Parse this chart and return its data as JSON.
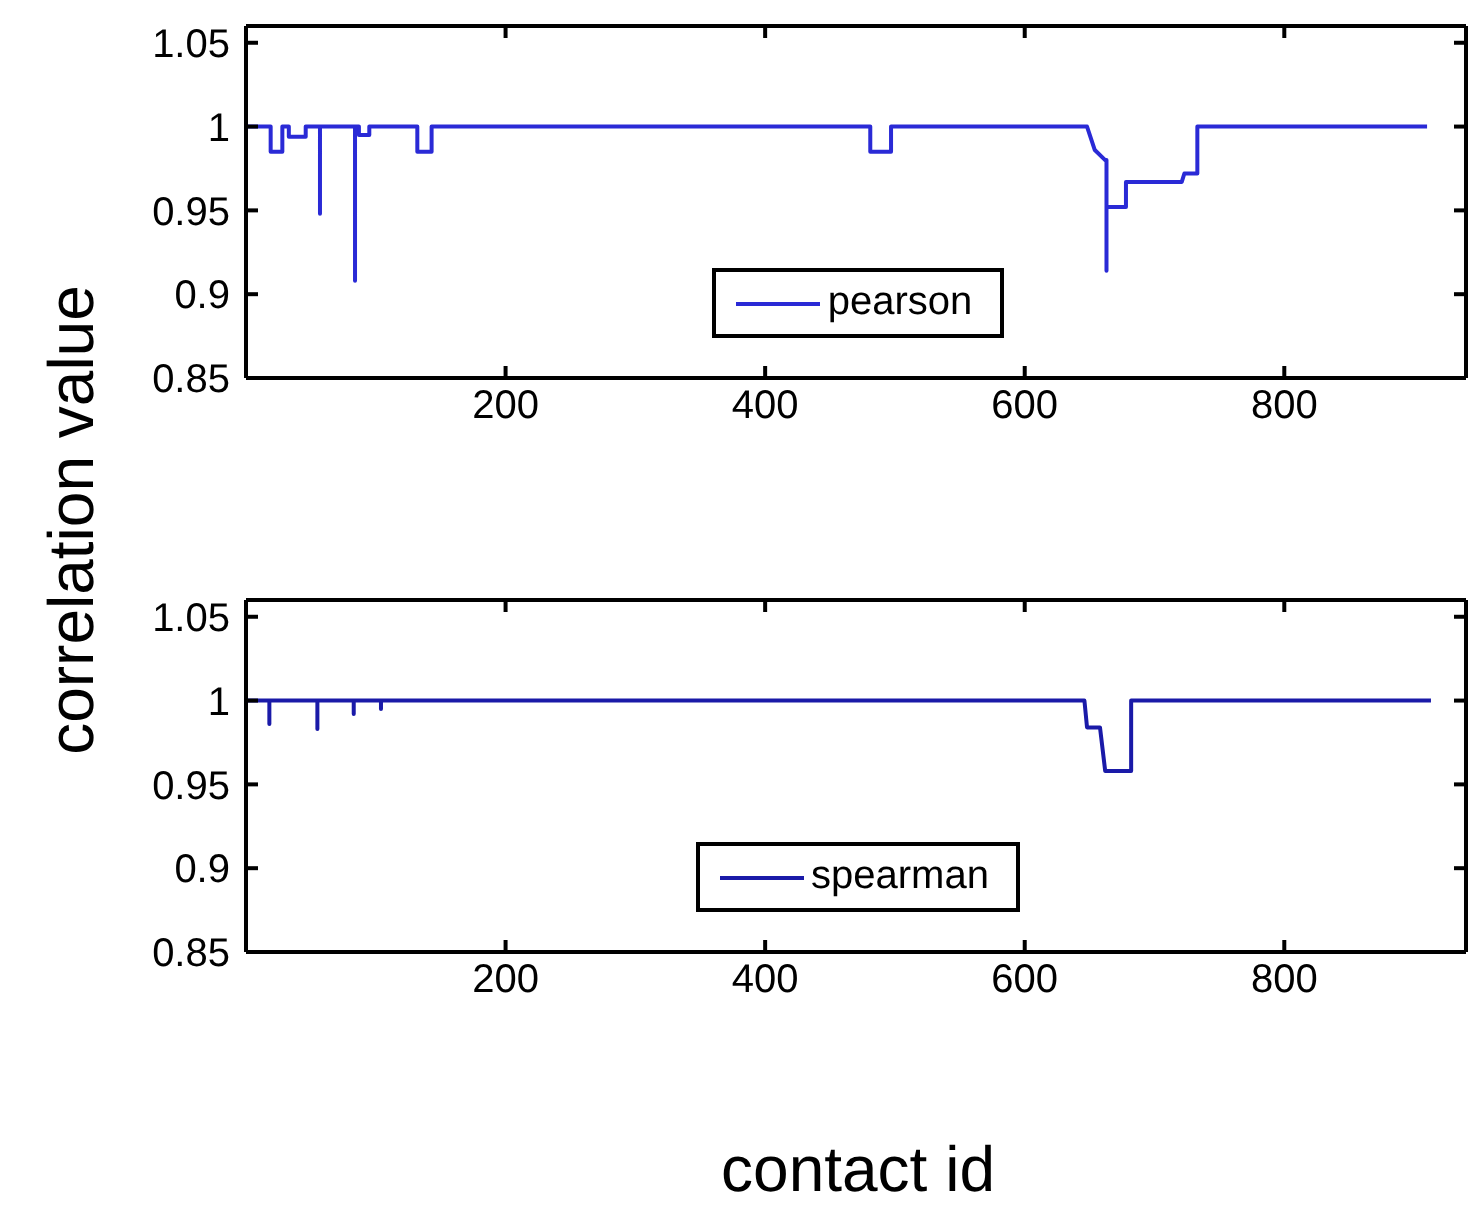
{
  "chart_data": [
    {
      "type": "line",
      "ylabel": "correlation value",
      "xlim": [
        0,
        940
      ],
      "xticks": [
        200,
        400,
        600,
        800
      ],
      "ylim": [
        0.85,
        1.06
      ],
      "yticks": [
        0.85,
        0.9,
        0.95,
        1,
        1.05
      ],
      "legend": "bottom",
      "marker": "none",
      "line_style": "solid",
      "series": [
        {
          "name": "pearson",
          "color": "#2a2ad6",
          "x": [
            1,
            19,
            19,
            28,
            28,
            33,
            33,
            46,
            46,
            57,
            57,
            57,
            84,
            84,
            84,
            87,
            87,
            95,
            95,
            132,
            132,
            143,
            143,
            481,
            481,
            497,
            497,
            648,
            654,
            662,
            663,
            663,
            663,
            665,
            678,
            678,
            685,
            721,
            723,
            733,
            733,
            910
          ],
          "values": [
            1,
            1,
            0.985,
            0.985,
            1,
            1,
            0.994,
            0.994,
            1,
            1,
            0.948,
            1,
            1,
            0.908,
            1,
            1,
            0.995,
            0.995,
            1,
            1,
            0.985,
            0.985,
            1,
            1,
            0.985,
            0.985,
            1,
            1,
            0.986,
            0.98,
            0.98,
            0.914,
            0.952,
            0.952,
            0.952,
            0.967,
            0.967,
            0.967,
            0.972,
            0.972,
            1,
            1
          ]
        }
      ]
    },
    {
      "type": "line",
      "xlabel": "contact id",
      "xlim": [
        0,
        940
      ],
      "xticks": [
        200,
        400,
        600,
        800
      ],
      "ylim": [
        0.85,
        1.06
      ],
      "yticks": [
        0.85,
        0.9,
        0.95,
        1,
        1.05
      ],
      "legend": "bottom",
      "marker": "none",
      "line_style": "solid",
      "series": [
        {
          "name": "spearman",
          "color": "#1a1aa8",
          "x": [
            1,
            18,
            18,
            18,
            55,
            55,
            55,
            83,
            83,
            83,
            104,
            104,
            104,
            646,
            648,
            658,
            662,
            682,
            682,
            913
          ],
          "values": [
            1,
            1,
            0.986,
            1,
            1,
            0.983,
            1,
            1,
            0.992,
            1,
            1,
            0.995,
            1,
            1,
            0.984,
            0.984,
            0.958,
            0.958,
            1,
            1
          ]
        }
      ]
    }
  ]
}
